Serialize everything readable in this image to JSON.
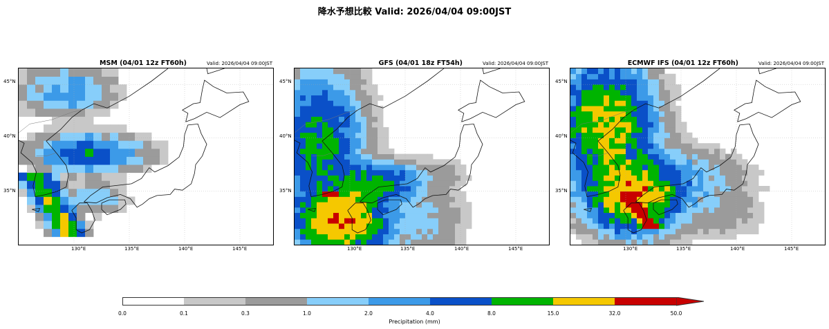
{
  "suptitle": "降水予想比較  Valid: 2026/04/04 09:00JST",
  "panels": [
    {
      "title": "MSM (04/01 12z FT60h)",
      "valid": "Valid: 2026/04/04 09:00JST"
    },
    {
      "title": "GFS (04/01 18z FT54h)",
      "valid": "Valid: 2026/04/04 09:00JST"
    },
    {
      "title": "ECMWF IFS (04/01 12z FT60h)",
      "valid": "Valid: 2026/04/04 09:00JST"
    }
  ],
  "lat_labels": [
    "45°N",
    "40°N",
    "35°N"
  ],
  "lon_labels": [
    "130°E",
    "135°E",
    "140°E",
    "145°E"
  ],
  "colorbar": {
    "label": "Precipitation (mm)",
    "ticks": [
      "0.0",
      "0.1",
      "0.3",
      "1.0",
      "2.0",
      "4.0",
      "8.0",
      "15.0",
      "32.0",
      "50.0"
    ],
    "colors": [
      "#ffffff",
      "#c8c8c8",
      "#9b9b9b",
      "#87cefa",
      "#3c9ae8",
      "#0a50c8",
      "#00b400",
      "#f5c800",
      "#c80000"
    ]
  }
}
